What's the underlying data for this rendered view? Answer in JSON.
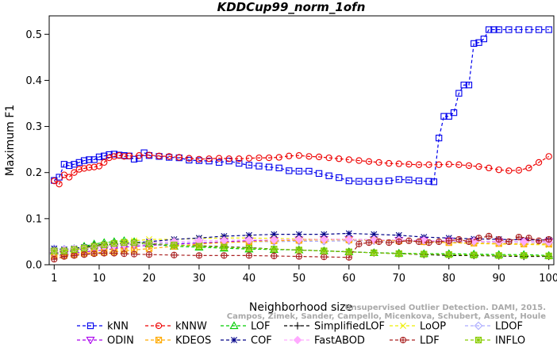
{
  "chart_data": {
    "type": "line",
    "title": "KDDCup99_norm_1ofn",
    "xlabel": "Neighborhood size",
    "ylabel": "Maximum F1",
    "xlim": [
      0,
      101
    ],
    "ylim": [
      0,
      0.54
    ],
    "x_ticks": [
      1,
      10,
      20,
      30,
      40,
      50,
      60,
      70,
      80,
      90,
      100
    ],
    "y_ticks": [
      0.0,
      0.1,
      0.2,
      0.3,
      0.4,
      0.5
    ],
    "grid": false,
    "legend_position": "bottom",
    "series": [
      {
        "name": "kNN",
        "color": "#0000ee",
        "marker": "square",
        "x": [
          1,
          2,
          3,
          4,
          5,
          6,
          7,
          8,
          9,
          10,
          11,
          12,
          13,
          14,
          15,
          16,
          17,
          18,
          19,
          20,
          22,
          24,
          26,
          28,
          30,
          32,
          34,
          36,
          38,
          40,
          42,
          44,
          46,
          48,
          50,
          52,
          54,
          56,
          58,
          60,
          62,
          64,
          66,
          68,
          70,
          72,
          74,
          76,
          77,
          78,
          79,
          80,
          81,
          82,
          83,
          84,
          85,
          86,
          87,
          88,
          89,
          90,
          92,
          94,
          96,
          98,
          100
        ],
        "y": [
          0.183,
          0.19,
          0.218,
          0.215,
          0.218,
          0.222,
          0.226,
          0.228,
          0.228,
          0.234,
          0.236,
          0.239,
          0.24,
          0.238,
          0.237,
          0.236,
          0.229,
          0.231,
          0.243,
          0.237,
          0.235,
          0.233,
          0.232,
          0.227,
          0.226,
          0.225,
          0.222,
          0.225,
          0.22,
          0.216,
          0.214,
          0.212,
          0.21,
          0.204,
          0.203,
          0.203,
          0.198,
          0.193,
          0.189,
          0.182,
          0.181,
          0.181,
          0.181,
          0.182,
          0.185,
          0.184,
          0.182,
          0.181,
          0.18,
          0.275,
          0.322,
          0.322,
          0.33,
          0.372,
          0.39,
          0.39,
          0.48,
          0.482,
          0.49,
          0.51,
          0.51,
          0.51,
          0.51,
          0.51,
          0.51,
          0.51,
          0.51
        ]
      },
      {
        "name": "kNNW",
        "color": "#ee0000",
        "marker": "circle",
        "x": [
          1,
          2,
          3,
          4,
          5,
          6,
          7,
          8,
          9,
          10,
          11,
          12,
          13,
          14,
          15,
          16,
          18,
          20,
          22,
          24,
          26,
          28,
          30,
          32,
          34,
          36,
          38,
          40,
          42,
          44,
          46,
          48,
          50,
          52,
          54,
          56,
          58,
          60,
          62,
          64,
          66,
          68,
          70,
          72,
          74,
          76,
          78,
          80,
          82,
          84,
          86,
          88,
          90,
          92,
          94,
          96,
          98,
          100
        ],
        "y": [
          0.182,
          0.175,
          0.195,
          0.19,
          0.2,
          0.207,
          0.209,
          0.211,
          0.212,
          0.214,
          0.222,
          0.232,
          0.235,
          0.237,
          0.235,
          0.236,
          0.237,
          0.238,
          0.236,
          0.235,
          0.233,
          0.231,
          0.229,
          0.23,
          0.231,
          0.23,
          0.23,
          0.231,
          0.232,
          0.232,
          0.233,
          0.236,
          0.237,
          0.235,
          0.234,
          0.232,
          0.23,
          0.228,
          0.226,
          0.224,
          0.222,
          0.22,
          0.219,
          0.218,
          0.217,
          0.217,
          0.217,
          0.218,
          0.217,
          0.215,
          0.213,
          0.21,
          0.206,
          0.204,
          0.205,
          0.21,
          0.222,
          0.235
        ]
      },
      {
        "name": "LOF",
        "color": "#00cc00",
        "marker": "triangle",
        "x": [
          1,
          3,
          5,
          7,
          9,
          11,
          13,
          15,
          17,
          20,
          25,
          30,
          35,
          40,
          45,
          50,
          55,
          60,
          65,
          70,
          75,
          80,
          85,
          90,
          95,
          100
        ],
        "y": [
          0.03,
          0.028,
          0.035,
          0.04,
          0.045,
          0.048,
          0.05,
          0.052,
          0.05,
          0.045,
          0.04,
          0.038,
          0.036,
          0.034,
          0.033,
          0.032,
          0.03,
          0.028,
          0.026,
          0.025,
          0.024,
          0.024,
          0.023,
          0.022,
          0.022,
          0.02
        ]
      },
      {
        "name": "SimplifiedLOF",
        "color": "#000000",
        "marker": "plus",
        "x": [
          1,
          3,
          5,
          7,
          9,
          11,
          13,
          15,
          17,
          20,
          25,
          30,
          35,
          40,
          45,
          50,
          55,
          60,
          65,
          70,
          75,
          80,
          85,
          90,
          95,
          100
        ],
        "y": [
          0.032,
          0.03,
          0.035,
          0.038,
          0.042,
          0.044,
          0.046,
          0.047,
          0.046,
          0.045,
          0.043,
          0.041,
          0.039,
          0.037,
          0.034,
          0.032,
          0.03,
          0.028,
          0.026,
          0.024,
          0.022,
          0.02,
          0.02,
          0.019,
          0.018,
          0.018
        ]
      },
      {
        "name": "LoOP",
        "color": "#eeee00",
        "marker": "x",
        "x": [
          1,
          3,
          5,
          7,
          9,
          11,
          13,
          15,
          17,
          20,
          25,
          30,
          35,
          40,
          45,
          50,
          55,
          60,
          65,
          70,
          75,
          80,
          85,
          90,
          95,
          100
        ],
        "y": [
          0.025,
          0.028,
          0.032,
          0.035,
          0.04,
          0.042,
          0.045,
          0.05,
          0.052,
          0.055,
          0.055,
          0.057,
          0.058,
          0.058,
          0.057,
          0.056,
          0.055,
          0.055,
          0.054,
          0.053,
          0.05,
          0.048,
          0.046,
          0.045,
          0.044,
          0.043
        ]
      },
      {
        "name": "LDOF",
        "color": "#aaaaff",
        "marker": "diamond",
        "x": [
          1,
          3,
          5,
          7,
          9,
          11,
          13,
          15,
          17,
          20,
          25,
          30,
          35,
          40,
          45,
          50,
          55,
          60,
          65,
          70,
          75,
          80,
          85,
          90,
          95,
          100
        ],
        "y": [
          0.035,
          0.034,
          0.035,
          0.036,
          0.038,
          0.04,
          0.042,
          0.044,
          0.045,
          0.046,
          0.047,
          0.048,
          0.049,
          0.05,
          0.05,
          0.051,
          0.051,
          0.052,
          0.052,
          0.052,
          0.051,
          0.05,
          0.05,
          0.049,
          0.049,
          0.048
        ]
      },
      {
        "name": "ODIN",
        "color": "#aa00ee",
        "marker": "triangle-down",
        "x": [
          1,
          3,
          5,
          7,
          9,
          11,
          13,
          15,
          17,
          20,
          25,
          30,
          35,
          40,
          45,
          50,
          55,
          60,
          65,
          70,
          75,
          80,
          85,
          90,
          95,
          100
        ],
        "y": [
          0.02,
          0.022,
          0.025,
          0.028,
          0.03,
          0.032,
          0.035,
          0.038,
          0.04,
          0.042,
          0.045,
          0.047,
          0.05,
          0.052,
          0.053,
          0.054,
          0.055,
          0.055,
          0.054,
          0.053,
          0.052,
          0.052,
          0.051,
          0.05,
          0.05,
          0.05
        ]
      },
      {
        "name": "KDEOS",
        "color": "#ffaa00",
        "marker": "square-x",
        "x": [
          1,
          3,
          5,
          7,
          9,
          11,
          13,
          15,
          17,
          20,
          25,
          30,
          35,
          40,
          45,
          50,
          55,
          60,
          65,
          70,
          75,
          80,
          85,
          90,
          95,
          100
        ],
        "y": [
          0.018,
          0.02,
          0.022,
          0.025,
          0.026,
          0.027,
          0.028,
          0.03,
          0.032,
          0.035,
          0.04,
          0.045,
          0.048,
          0.05,
          0.052,
          0.053,
          0.054,
          0.054,
          0.053,
          0.052,
          0.05,
          0.048,
          0.047,
          0.046,
          0.045,
          0.045
        ]
      },
      {
        "name": "COF",
        "color": "#000088",
        "marker": "asterisk",
        "x": [
          1,
          3,
          5,
          7,
          9,
          11,
          13,
          15,
          17,
          20,
          25,
          30,
          35,
          40,
          45,
          50,
          55,
          60,
          65,
          70,
          75,
          80,
          85,
          90,
          95,
          100
        ],
        "y": [
          0.035,
          0.033,
          0.035,
          0.038,
          0.04,
          0.042,
          0.044,
          0.046,
          0.048,
          0.05,
          0.055,
          0.058,
          0.062,
          0.064,
          0.066,
          0.066,
          0.066,
          0.068,
          0.066,
          0.064,
          0.06,
          0.058,
          0.056,
          0.055,
          0.054,
          0.054
        ]
      },
      {
        "name": "FastABOD",
        "color": "#ffaaff",
        "marker": "diamond-filled",
        "x": [
          1,
          3,
          5,
          7,
          9,
          11,
          13,
          15,
          17,
          20,
          25,
          30,
          35,
          40,
          45,
          50,
          55,
          60,
          65,
          70,
          75,
          80,
          85,
          90,
          95,
          100
        ],
        "y": [
          0.03,
          0.032,
          0.034,
          0.036,
          0.038,
          0.04,
          0.042,
          0.044,
          0.046,
          0.048,
          0.05,
          0.052,
          0.053,
          0.054,
          0.054,
          0.055,
          0.055,
          0.055,
          0.054,
          0.054,
          0.053,
          0.052,
          0.051,
          0.05,
          0.05,
          0.049
        ]
      },
      {
        "name": "LDF",
        "color": "#aa2222",
        "marker": "circle-plus",
        "x": [
          1,
          3,
          5,
          7,
          9,
          11,
          13,
          15,
          17,
          20,
          25,
          30,
          35,
          40,
          45,
          50,
          55,
          60,
          62,
          64,
          66,
          68,
          70,
          72,
          74,
          76,
          78,
          80,
          82,
          84,
          86,
          88,
          90,
          92,
          94,
          96,
          98,
          100
        ],
        "y": [
          0.012,
          0.018,
          0.02,
          0.022,
          0.024,
          0.025,
          0.025,
          0.024,
          0.023,
          0.022,
          0.021,
          0.02,
          0.02,
          0.02,
          0.019,
          0.018,
          0.017,
          0.016,
          0.045,
          0.048,
          0.05,
          0.048,
          0.05,
          0.052,
          0.05,
          0.048,
          0.05,
          0.052,
          0.055,
          0.05,
          0.058,
          0.062,
          0.055,
          0.05,
          0.06,
          0.058,
          0.052,
          0.055
        ]
      },
      {
        "name": "INFLO",
        "color": "#88cc00",
        "marker": "square-star",
        "x": [
          1,
          3,
          5,
          7,
          9,
          11,
          13,
          15,
          17,
          20,
          25,
          30,
          35,
          40,
          45,
          50,
          55,
          60,
          65,
          70,
          75,
          80,
          85,
          90,
          95,
          100
        ],
        "y": [
          0.03,
          0.03,
          0.033,
          0.036,
          0.04,
          0.043,
          0.046,
          0.048,
          0.048,
          0.046,
          0.043,
          0.04,
          0.038,
          0.036,
          0.034,
          0.032,
          0.03,
          0.028,
          0.026,
          0.024,
          0.023,
          0.022,
          0.021,
          0.02,
          0.02,
          0.019
        ]
      }
    ]
  },
  "attribution": {
    "line1": "Unsupervised Outlier Detection. DAMI, 2015.",
    "line2": "Campos, Zimek, Sander, Campello, Micenkova, Schubert, Assent, Houle"
  }
}
